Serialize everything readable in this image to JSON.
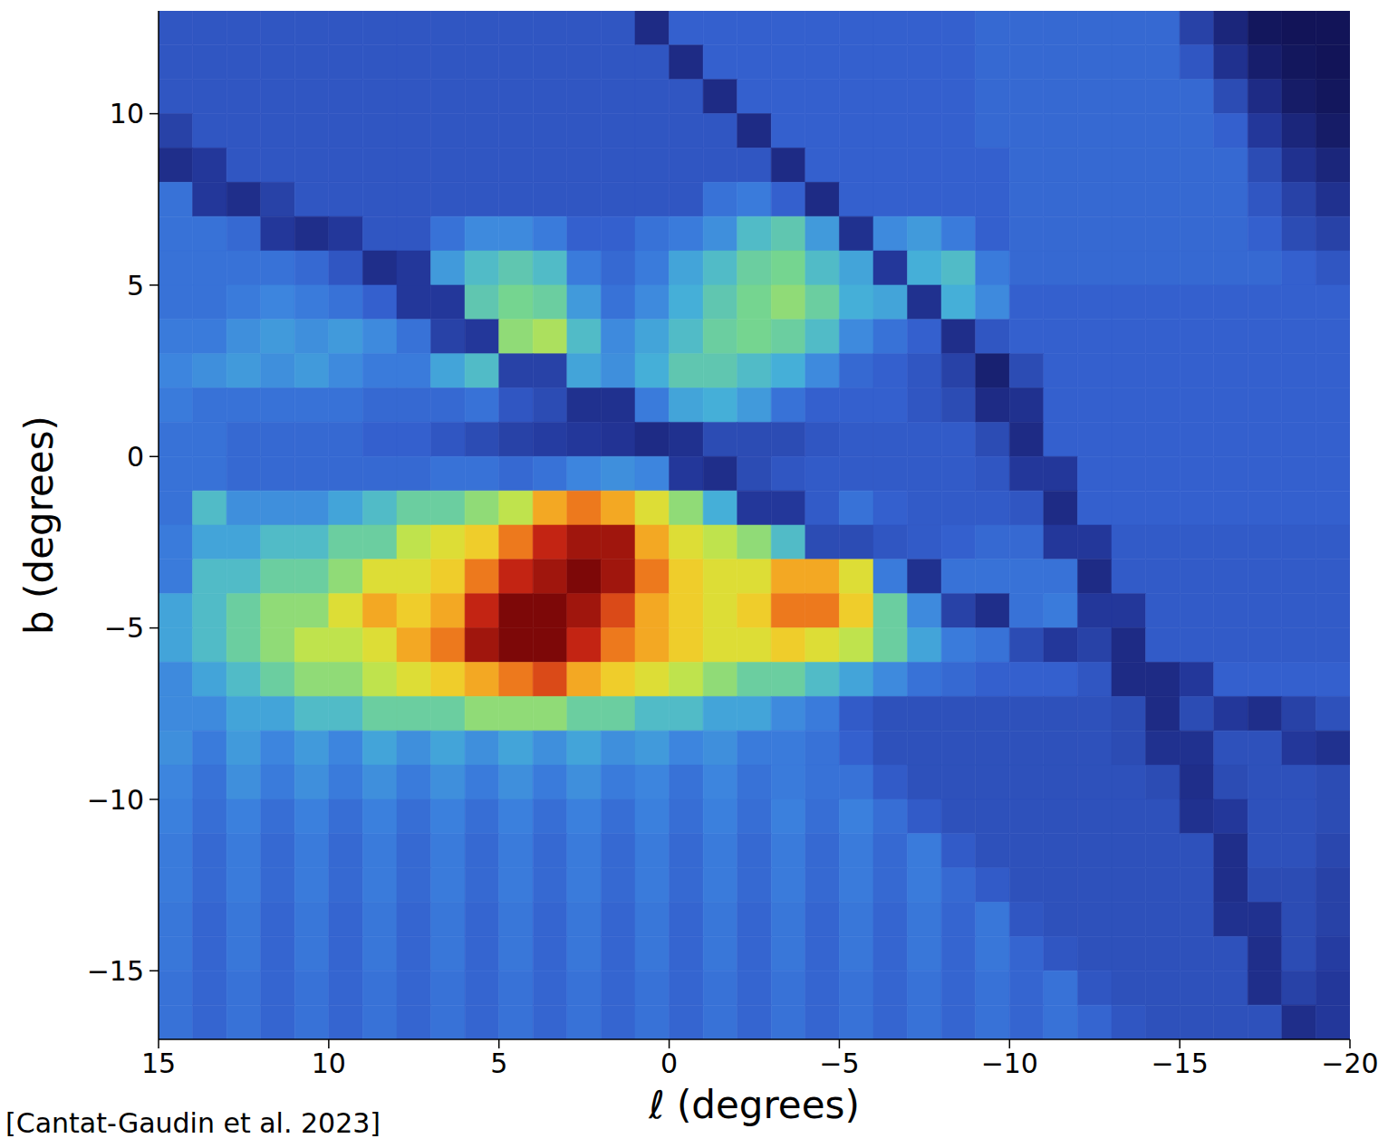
{
  "chart_data": {
    "type": "heatmap",
    "x_label": "ℓ (degrees)",
    "y_label": "b (degrees)",
    "annotation": "[Cantat-Gaudin et al. 2023]",
    "xlim": [
      15,
      -20
    ],
    "ylim": [
      -17,
      13
    ],
    "xticks": [
      15,
      10,
      5,
      0,
      {
        "value": -5,
        "label": "−5"
      },
      {
        "value": -10,
        "label": "−10"
      },
      {
        "value": -15,
        "label": "−15"
      },
      {
        "value": -20,
        "label": "−20"
      }
    ],
    "yticks": [
      {
        "value": -15,
        "label": "−15"
      },
      {
        "value": -10,
        "label": "−10"
      },
      {
        "value": -5,
        "label": "−5"
      },
      0,
      5,
      10
    ],
    "x": [
      14.5,
      13.5,
      12.5,
      11.5,
      10.5,
      9.5,
      8.5,
      7.5,
      6.5,
      5.5,
      4.5,
      3.5,
      2.5,
      1.5,
      0.5,
      -0.5,
      -1.5,
      -2.5,
      -3.5,
      -4.5,
      -5.5,
      -6.5,
      -7.5,
      -8.5,
      -9.5,
      -10.5,
      -11.5,
      -12.5,
      -13.5,
      -14.5,
      -15.5,
      -16.5,
      -17.5,
      -18.5,
      -19.5
    ],
    "y": [
      12.5,
      11.5,
      10.5,
      9.5,
      8.5,
      7.5,
      6.5,
      5.5,
      4.5,
      3.5,
      2.5,
      1.5,
      0.5,
      -0.5,
      -1.5,
      -2.5,
      -3.5,
      -4.5,
      -5.5,
      -6.5,
      -7.5,
      -8.5,
      -9.5,
      -10.5,
      -11.5,
      -12.5,
      -13.5,
      -14.5,
      -15.5,
      -16.5
    ],
    "cells": [
      [
        2.4,
        2.4,
        2.4,
        2.4,
        2.4,
        2.4,
        2.4,
        2.4,
        2.4,
        2.4,
        2.4,
        2.4,
        2.4,
        2.4,
        1.4,
        2.6,
        2.6,
        2.6,
        2.6,
        2.6,
        2.6,
        2.6,
        2.6,
        2.6,
        2.8,
        2.8,
        2.8,
        2.8,
        2.8,
        2.8,
        2.0,
        1.2,
        0.6,
        0.5,
        0.5
      ],
      [
        2.4,
        2.4,
        2.4,
        2.4,
        2.4,
        2.4,
        2.4,
        2.4,
        2.4,
        2.4,
        2.4,
        2.4,
        2.4,
        2.4,
        2.4,
        1.4,
        2.6,
        2.6,
        2.6,
        2.6,
        2.6,
        2.6,
        2.6,
        2.6,
        2.8,
        2.8,
        2.8,
        2.8,
        2.8,
        2.8,
        2.4,
        1.6,
        0.9,
        0.6,
        0.5
      ],
      [
        2.4,
        2.4,
        2.4,
        2.4,
        2.4,
        2.4,
        2.4,
        2.4,
        2.4,
        2.4,
        2.4,
        2.4,
        2.4,
        2.4,
        2.4,
        2.4,
        1.4,
        2.6,
        2.6,
        2.6,
        2.6,
        2.6,
        2.6,
        2.6,
        2.8,
        2.8,
        2.8,
        2.8,
        2.8,
        2.8,
        2.8,
        2.2,
        1.4,
        0.8,
        0.6
      ],
      [
        2.0,
        2.4,
        2.4,
        2.4,
        2.4,
        2.4,
        2.4,
        2.4,
        2.4,
        2.4,
        2.4,
        2.4,
        2.4,
        2.4,
        2.4,
        2.4,
        2.4,
        1.4,
        2.6,
        2.6,
        2.6,
        2.6,
        2.6,
        2.6,
        2.8,
        2.8,
        2.8,
        2.8,
        2.8,
        2.8,
        2.8,
        2.6,
        1.8,
        1.2,
        0.8
      ],
      [
        1.5,
        1.8,
        2.4,
        2.4,
        2.4,
        2.4,
        2.4,
        2.4,
        2.4,
        2.4,
        2.4,
        2.4,
        2.4,
        2.4,
        2.4,
        2.4,
        2.4,
        2.4,
        1.4,
        2.6,
        2.6,
        2.6,
        2.6,
        2.6,
        2.6,
        2.8,
        2.8,
        2.8,
        2.8,
        2.8,
        2.8,
        2.8,
        2.2,
        1.6,
        1.2
      ],
      [
        3.0,
        1.8,
        1.5,
        2.0,
        2.4,
        2.4,
        2.4,
        2.4,
        2.4,
        2.4,
        2.4,
        2.4,
        2.4,
        2.4,
        2.4,
        2.4,
        3.0,
        3.2,
        2.6,
        1.4,
        2.6,
        2.6,
        2.6,
        2.6,
        2.6,
        2.8,
        2.8,
        2.8,
        2.8,
        2.8,
        2.8,
        2.8,
        2.4,
        2.0,
        1.6
      ],
      [
        3.0,
        3.0,
        2.8,
        1.8,
        1.5,
        1.8,
        2.4,
        2.4,
        3.0,
        3.5,
        3.5,
        3.2,
        2.6,
        2.6,
        3.0,
        3.2,
        3.6,
        4.5,
        4.8,
        3.8,
        1.6,
        3.5,
        3.8,
        3.2,
        2.6,
        2.8,
        2.8,
        2.8,
        2.8,
        2.8,
        2.8,
        2.8,
        2.6,
        2.2,
        2.0
      ],
      [
        3.0,
        3.0,
        3.0,
        3.0,
        2.8,
        2.4,
        1.5,
        1.8,
        3.8,
        4.5,
        4.8,
        4.5,
        3.2,
        2.8,
        3.2,
        4.0,
        4.5,
        5.0,
        5.2,
        4.5,
        4.0,
        1.8,
        4.2,
        4.5,
        3.2,
        2.8,
        2.8,
        2.8,
        2.8,
        2.8,
        2.8,
        2.8,
        2.8,
        2.6,
        2.4
      ],
      [
        3.0,
        3.0,
        3.2,
        3.4,
        3.2,
        3.0,
        2.6,
        1.8,
        1.8,
        4.8,
        5.2,
        5.0,
        3.8,
        3.0,
        3.5,
        4.2,
        4.8,
        5.2,
        5.5,
        5.0,
        4.2,
        4.0,
        1.6,
        4.2,
        3.5,
        2.6,
        2.6,
        2.6,
        2.6,
        2.6,
        2.6,
        2.6,
        2.6,
        2.6,
        2.6
      ],
      [
        3.2,
        3.2,
        3.6,
        3.8,
        3.6,
        3.8,
        3.5,
        3.0,
        2.0,
        1.8,
        5.5,
        5.8,
        4.5,
        3.5,
        4.0,
        4.5,
        5.0,
        5.2,
        5.0,
        4.5,
        3.5,
        3.0,
        2.6,
        1.5,
        2.4,
        2.6,
        2.6,
        2.6,
        2.6,
        2.6,
        2.6,
        2.6,
        2.6,
        2.6,
        2.6
      ],
      [
        3.4,
        3.6,
        3.8,
        3.6,
        3.8,
        3.5,
        3.2,
        3.2,
        4.0,
        4.5,
        2.0,
        2.0,
        4.0,
        3.6,
        4.2,
        4.8,
        4.8,
        4.5,
        4.2,
        3.5,
        2.8,
        2.6,
        2.4,
        2.0,
        1.0,
        2.2,
        2.6,
        2.6,
        2.6,
        2.6,
        2.6,
        2.6,
        2.6,
        2.6,
        2.6
      ],
      [
        3.2,
        3.0,
        3.0,
        3.0,
        3.0,
        3.0,
        2.8,
        2.8,
        2.8,
        3.0,
        2.4,
        2.2,
        1.6,
        1.6,
        3.2,
        4.0,
        4.2,
        3.8,
        3.0,
        2.6,
        2.6,
        2.6,
        2.4,
        2.2,
        1.4,
        1.6,
        2.6,
        2.6,
        2.6,
        2.6,
        2.6,
        2.6,
        2.6,
        2.6,
        2.6
      ],
      [
        3.0,
        3.0,
        2.8,
        2.8,
        2.8,
        2.8,
        2.6,
        2.6,
        2.4,
        2.2,
        2.0,
        1.9,
        1.8,
        1.7,
        1.4,
        1.6,
        2.2,
        2.2,
        2.2,
        2.4,
        2.5,
        2.5,
        2.5,
        2.5,
        2.2,
        1.4,
        2.6,
        2.6,
        2.6,
        2.6,
        2.6,
        2.6,
        2.6,
        2.6,
        2.6
      ],
      [
        3.0,
        3.0,
        2.8,
        2.8,
        2.8,
        2.8,
        2.8,
        2.8,
        3.0,
        3.0,
        2.8,
        3.0,
        3.4,
        3.6,
        3.4,
        1.8,
        1.5,
        2.2,
        2.4,
        2.5,
        2.5,
        2.5,
        2.5,
        2.5,
        2.4,
        1.8,
        1.8,
        2.6,
        2.6,
        2.6,
        2.6,
        2.6,
        2.6,
        2.6,
        2.6
      ],
      [
        3.0,
        4.5,
        3.6,
        3.6,
        3.6,
        4.0,
        4.5,
        5.0,
        5.0,
        5.5,
        6.0,
        7.5,
        8.0,
        7.5,
        6.5,
        5.5,
        4.2,
        1.8,
        1.8,
        2.5,
        3.0,
        2.6,
        2.5,
        2.5,
        2.5,
        2.4,
        1.4,
        2.6,
        2.6,
        2.6,
        2.6,
        2.6,
        2.6,
        2.6,
        2.6
      ],
      [
        3.2,
        4.0,
        4.0,
        4.5,
        4.5,
        5.0,
        5.0,
        6.0,
        6.5,
        7.0,
        8.0,
        9.0,
        9.5,
        9.5,
        7.5,
        6.5,
        6.0,
        5.5,
        4.5,
        2.2,
        2.2,
        2.4,
        2.5,
        2.6,
        2.8,
        2.8,
        1.8,
        1.8,
        2.5,
        2.5,
        2.5,
        2.5,
        2.5,
        2.5,
        2.5
      ],
      [
        3.2,
        4.5,
        4.5,
        5.0,
        5.0,
        5.5,
        6.5,
        6.5,
        7.0,
        8.0,
        9.0,
        9.5,
        10,
        9.5,
        8.0,
        7.0,
        6.5,
        6.5,
        7.5,
        7.5,
        6.5,
        3.2,
        1.6,
        3.0,
        3.0,
        3.0,
        3.0,
        1.4,
        2.5,
        2.5,
        2.5,
        2.5,
        2.5,
        2.5,
        2.5
      ],
      [
        4.0,
        4.5,
        5.0,
        5.5,
        5.5,
        6.5,
        7.5,
        7.0,
        7.5,
        9.0,
        10,
        10,
        9.5,
        8.5,
        7.5,
        7.0,
        6.5,
        7.0,
        8.0,
        8.0,
        7.0,
        5.0,
        3.5,
        2.0,
        1.5,
        3.0,
        3.2,
        1.8,
        1.8,
        2.5,
        2.5,
        2.5,
        2.5,
        2.5,
        2.5
      ],
      [
        4.0,
        4.5,
        5.0,
        5.5,
        6.0,
        6.0,
        6.5,
        7.5,
        8.0,
        9.5,
        10,
        10,
        9.0,
        8.0,
        7.5,
        7.0,
        6.5,
        6.5,
        7.0,
        6.5,
        6.0,
        5.0,
        4.0,
        3.2,
        3.0,
        2.2,
        1.8,
        2.0,
        1.4,
        2.5,
        2.5,
        2.5,
        2.5,
        2.5,
        2.5
      ],
      [
        3.5,
        4.0,
        4.5,
        5.0,
        5.5,
        5.5,
        6.0,
        6.5,
        7.0,
        7.5,
        8.0,
        8.5,
        7.5,
        7.0,
        6.5,
        6.0,
        5.5,
        5.0,
        5.0,
        4.5,
        4.0,
        3.5,
        3.0,
        2.8,
        2.6,
        2.6,
        2.6,
        2.4,
        1.4,
        1.4,
        1.8,
        2.6,
        2.6,
        2.6,
        2.6
      ],
      [
        3.5,
        3.5,
        4.0,
        4.0,
        4.5,
        4.5,
        5.0,
        5.0,
        5.0,
        5.5,
        5.5,
        5.5,
        5.0,
        5.0,
        4.5,
        4.5,
        4.0,
        4.0,
        3.5,
        3.2,
        2.5,
        2.3,
        2.3,
        2.3,
        2.3,
        2.3,
        2.3,
        2.3,
        2.2,
        1.4,
        2.2,
        1.8,
        1.5,
        2.0,
        2.3
      ],
      [
        3.6,
        3.2,
        3.8,
        3.4,
        3.8,
        3.4,
        4.0,
        3.6,
        4.0,
        3.6,
        4.0,
        3.6,
        4.0,
        3.6,
        3.8,
        3.4,
        3.6,
        3.2,
        3.2,
        3.0,
        2.6,
        2.3,
        2.3,
        2.3,
        2.3,
        2.3,
        2.3,
        2.3,
        2.2,
        1.6,
        1.6,
        2.3,
        2.3,
        1.8,
        1.6
      ],
      [
        3.4,
        3.0,
        3.6,
        3.2,
        3.6,
        3.2,
        3.6,
        3.2,
        3.6,
        3.2,
        3.6,
        3.2,
        3.6,
        3.2,
        3.4,
        3.0,
        3.4,
        3.0,
        3.2,
        3.0,
        3.0,
        2.5,
        2.3,
        2.3,
        2.3,
        2.3,
        2.3,
        2.3,
        2.3,
        2.2,
        1.5,
        2.2,
        2.3,
        2.3,
        2.2
      ],
      [
        3.3,
        2.9,
        3.3,
        2.9,
        3.3,
        2.9,
        3.3,
        2.9,
        3.3,
        2.9,
        3.3,
        2.9,
        3.3,
        2.9,
        3.3,
        2.9,
        3.3,
        2.9,
        3.3,
        2.9,
        3.3,
        2.9,
        2.5,
        2.3,
        2.3,
        2.3,
        2.3,
        2.3,
        2.3,
        2.3,
        1.6,
        1.8,
        2.3,
        2.3,
        2.2
      ],
      [
        3.2,
        2.8,
        3.2,
        2.8,
        3.2,
        2.8,
        3.2,
        2.8,
        3.2,
        2.8,
        3.2,
        2.8,
        3.2,
        2.8,
        3.2,
        2.8,
        3.2,
        2.8,
        3.2,
        2.8,
        3.2,
        2.8,
        3.2,
        2.5,
        2.3,
        2.3,
        2.3,
        2.3,
        2.3,
        2.3,
        2.3,
        1.5,
        2.3,
        2.3,
        2.1
      ],
      [
        3.2,
        2.8,
        3.2,
        2.8,
        3.2,
        2.8,
        3.2,
        2.8,
        3.2,
        2.8,
        3.2,
        2.8,
        3.2,
        2.8,
        3.2,
        2.8,
        3.2,
        2.8,
        3.2,
        2.8,
        3.2,
        2.8,
        3.2,
        2.8,
        2.5,
        2.3,
        2.3,
        2.3,
        2.3,
        2.3,
        2.3,
        1.5,
        2.2,
        2.2,
        2.0
      ],
      [
        3.1,
        2.7,
        3.1,
        2.7,
        3.1,
        2.7,
        3.1,
        2.7,
        3.1,
        2.7,
        3.1,
        2.7,
        3.1,
        2.7,
        3.1,
        2.7,
        3.1,
        2.7,
        3.1,
        2.7,
        3.1,
        2.7,
        3.1,
        2.7,
        3.1,
        2.4,
        2.3,
        2.3,
        2.3,
        2.3,
        2.3,
        1.6,
        1.6,
        2.2,
        2.0
      ],
      [
        3.1,
        2.7,
        3.1,
        2.7,
        3.1,
        2.7,
        3.1,
        2.7,
        3.1,
        2.7,
        3.1,
        2.7,
        3.1,
        2.7,
        3.1,
        2.7,
        3.1,
        2.7,
        3.1,
        2.7,
        3.1,
        2.7,
        3.1,
        2.7,
        3.1,
        2.7,
        2.4,
        2.3,
        2.3,
        2.3,
        2.3,
        2.3,
        1.5,
        2.2,
        1.9
      ],
      [
        3.0,
        2.7,
        3.0,
        2.7,
        3.0,
        2.7,
        3.0,
        2.7,
        3.0,
        2.7,
        3.0,
        2.7,
        3.0,
        2.7,
        3.0,
        2.7,
        3.0,
        2.7,
        3.0,
        2.7,
        3.0,
        2.7,
        3.0,
        2.7,
        3.0,
        2.7,
        3.0,
        2.4,
        2.3,
        2.3,
        2.3,
        2.3,
        1.5,
        2.0,
        1.8
      ],
      [
        3.0,
        2.7,
        3.0,
        2.7,
        3.0,
        2.7,
        3.0,
        2.7,
        3.0,
        2.7,
        3.0,
        2.7,
        3.0,
        2.7,
        3.0,
        2.7,
        3.0,
        2.7,
        3.0,
        2.7,
        3.0,
        2.7,
        3.0,
        2.7,
        3.0,
        2.7,
        3.0,
        2.7,
        2.4,
        2.3,
        2.3,
        2.3,
        2.3,
        1.5,
        1.8
      ]
    ]
  }
}
